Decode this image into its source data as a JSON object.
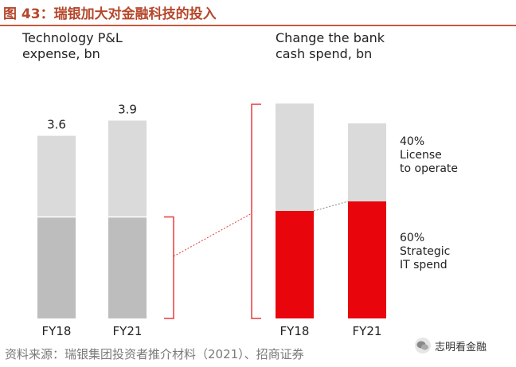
{
  "figure": {
    "title": "图 43：瑞银加大对金融科技的投入",
    "source": "资料来源：瑞银集团投资者推介材料（2021）、招商证券",
    "watermark": "志明看金融"
  },
  "colors": {
    "title": "#b5472b",
    "light_gray": "#dadada",
    "mid_gray": "#bdbdbd",
    "red": "#e8050c",
    "bracket": "#e53b3b"
  },
  "chart_data": [
    {
      "type": "bar",
      "stacked": true,
      "title": "Technology P&L\nexpense, bn",
      "title_lines": [
        "Technology P&L",
        "expense, bn"
      ],
      "categories": [
        "FY18",
        "FY21"
      ],
      "totals": [
        3.6,
        3.9
      ],
      "total_labels": [
        "3.6",
        "3.9"
      ],
      "series": [
        {
          "values": [
            2.0,
            2.0
          ],
          "color": "#bdbdbd"
        },
        {
          "values": [
            1.6,
            1.9
          ],
          "color": "#dadada"
        }
      ],
      "ylim": [
        0,
        4.3
      ]
    },
    {
      "type": "bar",
      "stacked": true,
      "normalized": true,
      "title": "Change the bank\ncash spend, bn",
      "title_lines": [
        "Change the bank",
        "cash spend, bn"
      ],
      "categories": [
        "FY18",
        "FY21"
      ],
      "series": [
        {
          "name": "60% Strategic IT spend",
          "name_lines": [
            "60%",
            "Strategic",
            "IT spend"
          ],
          "values": [
            0.5,
            0.6
          ],
          "color": "#e8050c"
        },
        {
          "name": "40% License to operate",
          "name_lines": [
            "40%",
            "License",
            "to operate"
          ],
          "values": [
            0.5,
            0.4
          ],
          "color": "#dadada"
        }
      ],
      "ylim": [
        0,
        1
      ]
    }
  ]
}
